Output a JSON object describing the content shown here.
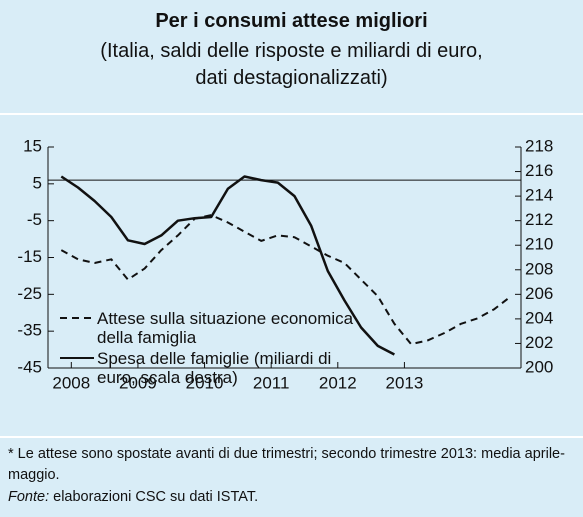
{
  "chart_data": {
    "type": "line",
    "title": "Per i consumi attese migliori",
    "subtitle": "(Italia, saldi delle risposte e miliardi di euro, dati destagionalizzati)",
    "x": [
      2007.85,
      2008.1,
      2008.35,
      2008.6,
      2008.85,
      2009.1,
      2009.35,
      2009.6,
      2009.85,
      2010.1,
      2010.35,
      2010.6,
      2010.85,
      2011.1,
      2011.35,
      2011.6,
      2011.85,
      2012.1,
      2012.35,
      2012.6,
      2012.85,
      2013.1,
      2013.35,
      2013.6,
      2013.85,
      2014.1,
      2014.35,
      2014.6
    ],
    "series": [
      {
        "name": "Attese sulla situazione economica della famiglia",
        "color": "#111111",
        "style": "dashed",
        "values": [
          -13,
          -15.5,
          -16.5,
          -15.5,
          -21,
          -18,
          -13,
          -9,
          -4.5,
          -3.5,
          -5.5,
          -8,
          -10.5,
          -9,
          -9.5,
          -12,
          -14.5,
          -16.5,
          -21,
          -25.5,
          -33,
          -38.5,
          -37.5,
          -35.5,
          -33,
          -31.5,
          -29,
          -25.5
        ]
      },
      {
        "name": "Spesa delle famiglie (miliardi di euro, scala destra)",
        "color": "#111111",
        "style": "solid",
        "axis": "y2",
        "values": [
          215.6,
          214.7,
          213.6,
          212.3,
          210.4,
          210.1,
          210.8,
          212.0,
          212.2,
          212.3,
          214.6,
          215.6,
          215.3,
          215.1,
          214.0,
          211.6,
          207.9,
          205.5,
          203.3,
          201.8,
          201.1,
          null,
          null,
          null,
          null,
          null,
          null,
          null
        ]
      }
    ],
    "xlim": [
      2007.65,
      2014.75
    ],
    "xticks": [
      2008,
      2009,
      2010,
      2011,
      2012,
      2013
    ],
    "ylim": [
      -45,
      15
    ],
    "yticks": [
      15,
      5,
      -5,
      -15,
      -25,
      -35,
      -45
    ],
    "y2lim": [
      200,
      218
    ],
    "y2ticks": [
      218,
      216,
      214,
      212,
      210,
      208,
      206,
      204,
      202,
      200
    ],
    "reference_line": 6,
    "notes": [
      "* Le attese sono spostate avanti di due trimestri; secondo trimestre 2013: media aprile-maggio.",
      "Fonte:",
      " elaborazioni CSC su dati ISTAT."
    ]
  }
}
